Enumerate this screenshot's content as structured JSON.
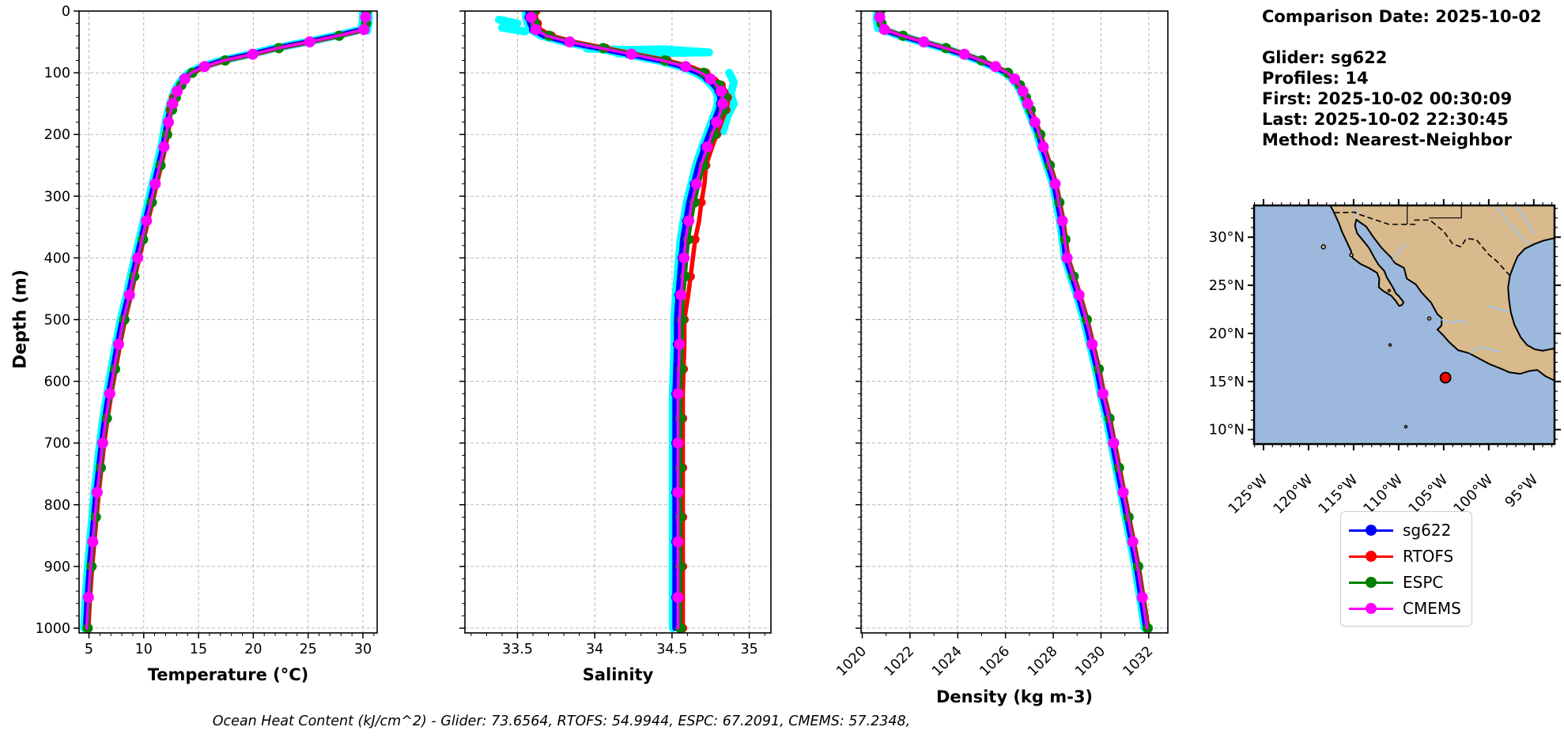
{
  "header": {
    "comparison_date": "Comparison Date: 2025-10-02",
    "glider": "Glider: sg622",
    "profiles": "Profiles: 14",
    "first": "First: 2025-10-02 00:30:09",
    "last": "Last: 2025-10-02 22:30:45",
    "method": "Method: Nearest-Neighbor"
  },
  "footer": {
    "ohc_line": "Ocean Heat Content (kJ/cm^2) - Glider: 73.6564,  RTOFS: 54.9944,  ESPC: 67.2091,  CMEMS: 57.2348,"
  },
  "legend": {
    "items": [
      {
        "label": "sg622",
        "color": "#0000ff"
      },
      {
        "label": "RTOFS",
        "color": "#ff0000"
      },
      {
        "label": "ESPC",
        "color": "#008000"
      },
      {
        "label": "CMEMS",
        "color": "#ff00ff"
      }
    ]
  },
  "colors": {
    "raw_glider": "#00ffff",
    "grid": "#b8b8b8",
    "land": "#d9ba8c",
    "ocean": "#9cb8dd",
    "river": "#a8c6e8",
    "point_fill": "#ff0000",
    "point_edge": "#000000"
  },
  "chart_data": {
    "type": "line",
    "description": "Glider sg622 vs model vertical profiles, depth 0-1000 m",
    "ylabel": "Depth (m)",
    "ylim": [
      0,
      1000
    ],
    "yticks": [
      0,
      100,
      200,
      300,
      400,
      500,
      600,
      700,
      800,
      900,
      1000
    ],
    "depths": [
      0,
      10,
      20,
      30,
      40,
      50,
      60,
      70,
      80,
      90,
      100,
      110,
      120,
      130,
      140,
      150,
      160,
      180,
      200,
      220,
      250,
      280,
      310,
      340,
      370,
      400,
      430,
      460,
      500,
      540,
      580,
      620,
      660,
      700,
      740,
      780,
      820,
      860,
      900,
      950,
      1000
    ],
    "charts": [
      {
        "id": "temperature",
        "xlabel": "Temperature (°C)",
        "xlim": [
          4.1,
          31.3
        ],
        "xticks": [
          5,
          10,
          15,
          20,
          25,
          30
        ],
        "minor_step": 1,
        "values_center": [
          30.3,
          30.3,
          30.25,
          30.15,
          27.8,
          25.2,
          22.3,
          20.0,
          17.4,
          15.6,
          14.4,
          13.8,
          13.4,
          13.1,
          12.9,
          12.7,
          12.55,
          12.3,
          12.1,
          11.9,
          11.5,
          11.1,
          10.7,
          10.3,
          9.9,
          9.5,
          9.1,
          8.75,
          8.2,
          7.75,
          7.35,
          6.95,
          6.6,
          6.3,
          6.05,
          5.8,
          5.6,
          5.4,
          5.2,
          5.0,
          4.85
        ],
        "series": [
          {
            "name": "glider-raw",
            "color": "#00ffff",
            "offset": -0.3,
            "lw": 10,
            "mr": 0
          },
          {
            "name": "sg622",
            "color": "#0000ff",
            "offset": -0.15,
            "lw": 7,
            "mr": 5,
            "mphase": 1
          },
          {
            "name": "RTOFS",
            "color": "#ff0000",
            "offset": 0.1,
            "lw": 5.5,
            "mr": 5.5,
            "mphase": 0,
            "deltas": {
              "140": -0.3,
              "150": -0.5,
              "160": -0.25
            }
          },
          {
            "name": "ESPC",
            "color": "#008000",
            "offset": 0.03,
            "lw": 4.5,
            "mr": 6.5,
            "mphase": 0
          },
          {
            "name": "CMEMS",
            "color": "#ff00ff",
            "offset": -0.05,
            "lw": 3.5,
            "mr": 7,
            "mphase": 1
          }
        ],
        "raw_extras": [
          [
            [
              30.5,
              2
            ],
            [
              30.55,
              12
            ],
            [
              30.5,
              22
            ],
            [
              30.4,
              32
            ]
          ]
        ]
      },
      {
        "id": "salinity",
        "xlabel": "Salinity",
        "xlim": [
          33.16,
          35.14
        ],
        "xticks": [
          33.5,
          34.0,
          34.5,
          35.0
        ],
        "minor_step": 0.1,
        "values_center": [
          33.6,
          33.6,
          33.61,
          33.63,
          33.7,
          33.85,
          34.05,
          34.25,
          34.45,
          34.6,
          34.7,
          34.76,
          34.8,
          34.83,
          34.84,
          34.84,
          34.83,
          34.8,
          34.77,
          34.74,
          34.7,
          34.67,
          34.64,
          34.62,
          34.6,
          34.59,
          34.58,
          34.57,
          34.56,
          34.56,
          34.555,
          34.55,
          34.55,
          34.55,
          34.55,
          34.55,
          34.55,
          34.55,
          34.55,
          34.55,
          34.55
        ],
        "series": [
          {
            "name": "glider-raw",
            "color": "#00ffff",
            "offset": -0.045,
            "lw": 10,
            "mr": 0
          },
          {
            "name": "sg622",
            "color": "#0000ff",
            "offset": -0.03,
            "lw": 7,
            "mr": 5,
            "mphase": 1
          },
          {
            "name": "RTOFS",
            "color": "#ff0000",
            "offset": 0.02,
            "lw": 5.5,
            "mr": 5.5,
            "mphase": 0,
            "deltas": {
              "280": 0.02,
              "310": 0.03,
              "340": 0.035,
              "370": 0.03,
              "400": 0.025,
              "430": 0.02,
              "460": 0.015
            }
          },
          {
            "name": "ESPC",
            "color": "#008000",
            "offset": 0.005,
            "lw": 4.5,
            "mr": 6.5,
            "mphase": 0
          },
          {
            "name": "CMEMS",
            "color": "#ff00ff",
            "offset": -0.012,
            "lw": 3.5,
            "mr": 7,
            "mphase": 1
          }
        ],
        "raw_extras": [
          [
            [
              33.38,
              14
            ],
            [
              33.5,
              20
            ],
            [
              33.4,
              27
            ],
            [
              33.55,
              33
            ]
          ],
          [
            [
              33.95,
              61
            ],
            [
              34.2,
              63
            ],
            [
              34.45,
              62
            ],
            [
              34.62,
              65
            ],
            [
              34.74,
              67
            ],
            [
              34.45,
              68
            ],
            [
              34.15,
              69
            ]
          ],
          [
            [
              34.87,
              100
            ],
            [
              34.9,
              115
            ],
            [
              34.88,
              135
            ],
            [
              34.9,
              150
            ],
            [
              34.86,
              170
            ],
            [
              34.83,
              195
            ]
          ]
        ]
      },
      {
        "id": "density",
        "xlabel": "Density (kg m-3)",
        "xlim": [
          1019.95,
          1032.8
        ],
        "xticks": [
          1020,
          1022,
          1024,
          1026,
          1028,
          1030,
          1032
        ],
        "minor_step": 1,
        "rotate_xticklabels": -45,
        "values_center": [
          1020.75,
          1020.75,
          1020.8,
          1020.95,
          1021.7,
          1022.6,
          1023.5,
          1024.3,
          1025.0,
          1025.6,
          1026.1,
          1026.4,
          1026.6,
          1026.75,
          1026.85,
          1026.95,
          1027.05,
          1027.25,
          1027.45,
          1027.6,
          1027.85,
          1028.1,
          1028.25,
          1028.4,
          1028.5,
          1028.6,
          1028.85,
          1029.1,
          1029.4,
          1029.65,
          1029.9,
          1030.1,
          1030.35,
          1030.55,
          1030.75,
          1030.95,
          1031.15,
          1031.35,
          1031.55,
          1031.75,
          1031.95
        ],
        "series": [
          {
            "name": "glider-raw",
            "color": "#00ffff",
            "offset": -0.12,
            "lw": 10,
            "mr": 0
          },
          {
            "name": "sg622",
            "color": "#0000ff",
            "offset": -0.07,
            "lw": 7,
            "mr": 5,
            "mphase": 1
          },
          {
            "name": "RTOFS",
            "color": "#ff0000",
            "offset": 0.03,
            "lw": 5.5,
            "mr": 5.5,
            "mphase": 0
          },
          {
            "name": "ESPC",
            "color": "#008000",
            "offset": 0.005,
            "lw": 4.5,
            "mr": 6.5,
            "mphase": 0
          },
          {
            "name": "CMEMS",
            "color": "#ff00ff",
            "offset": -0.02,
            "lw": 3.5,
            "mr": 7,
            "mphase": 1
          }
        ],
        "raw_extras": [
          [
            [
              1020.62,
              2
            ],
            [
              1020.6,
              15
            ],
            [
              1020.66,
              28
            ]
          ]
        ]
      }
    ]
  },
  "map": {
    "extent": {
      "lon_min": -126.05,
      "lon_max": -92.7,
      "lat_min": 8.5,
      "lat_max": 33.3
    },
    "lat_ticks": [
      {
        "v": 30,
        "label": "30°N"
      },
      {
        "v": 25,
        "label": "25°N"
      },
      {
        "v": 20,
        "label": "20°N"
      },
      {
        "v": 15,
        "label": "15°N"
      },
      {
        "v": 10,
        "label": "10°N"
      }
    ],
    "lon_ticks": [
      {
        "v": -125,
        "label": "125°W"
      },
      {
        "v": -120,
        "label": "120°W"
      },
      {
        "v": -115,
        "label": "115°W"
      },
      {
        "v": -110,
        "label": "110°W"
      },
      {
        "v": -105,
        "label": "105°W"
      },
      {
        "v": -100,
        "label": "100°W"
      },
      {
        "v": -95,
        "label": "95°W"
      }
    ],
    "point": {
      "lon": -104.8,
      "lat": 15.4
    },
    "land": [
      [
        [
          -117.6,
          33.3
        ],
        [
          -92.7,
          33.3
        ],
        [
          -92.7,
          29.9
        ],
        [
          -93.9,
          29.65
        ],
        [
          -94.9,
          29.3
        ],
        [
          -96.0,
          28.8
        ],
        [
          -96.8,
          28.0
        ],
        [
          -97.25,
          27.0
        ],
        [
          -97.65,
          26.0
        ],
        [
          -97.85,
          24.8
        ],
        [
          -97.75,
          23.5
        ],
        [
          -97.55,
          22.2
        ],
        [
          -97.15,
          20.9
        ],
        [
          -96.45,
          19.6
        ],
        [
          -95.75,
          18.8
        ],
        [
          -94.9,
          18.35
        ],
        [
          -94.0,
          18.2
        ],
        [
          -93.2,
          18.35
        ],
        [
          -92.7,
          18.45
        ],
        [
          -92.7,
          15.1
        ],
        [
          -93.7,
          15.55
        ],
        [
          -94.6,
          16.2
        ],
        [
          -95.5,
          16.1
        ],
        [
          -96.5,
          15.8
        ],
        [
          -97.7,
          15.95
        ],
        [
          -98.8,
          16.4
        ],
        [
          -99.9,
          16.8
        ],
        [
          -101.1,
          17.4
        ],
        [
          -102.2,
          17.95
        ],
        [
          -103.4,
          18.25
        ],
        [
          -104.4,
          19.1
        ],
        [
          -105.05,
          19.8
        ],
        [
          -105.7,
          20.4
        ],
        [
          -105.25,
          20.8
        ],
        [
          -105.2,
          21.6
        ],
        [
          -105.7,
          22.0
        ],
        [
          -106.4,
          23.2
        ],
        [
          -107.5,
          24.3
        ],
        [
          -108.1,
          25.1
        ],
        [
          -109.1,
          25.7
        ],
        [
          -109.4,
          26.8
        ],
        [
          -110.4,
          27.3
        ],
        [
          -110.9,
          27.95
        ],
        [
          -111.9,
          28.9
        ],
        [
          -112.8,
          30.0
        ],
        [
          -113.6,
          31.1
        ],
        [
          -114.45,
          31.65
        ],
        [
          -114.7,
          31.85
        ],
        [
          -114.85,
          31.2
        ],
        [
          -114.6,
          30.4
        ],
        [
          -113.9,
          29.6
        ],
        [
          -113.3,
          28.9
        ],
        [
          -112.6,
          27.7
        ],
        [
          -112.2,
          27.1
        ],
        [
          -111.6,
          26.5
        ],
        [
          -111.3,
          25.8
        ],
        [
          -110.65,
          24.8
        ],
        [
          -110.3,
          24.15
        ],
        [
          -110.0,
          23.9
        ],
        [
          -109.45,
          23.25
        ],
        [
          -109.65,
          22.95
        ],
        [
          -109.95,
          22.85
        ],
        [
          -110.3,
          23.35
        ],
        [
          -110.8,
          23.9
        ],
        [
          -111.7,
          24.4
        ],
        [
          -112.2,
          24.8
        ],
        [
          -112.15,
          25.7
        ],
        [
          -112.4,
          26.3
        ],
        [
          -113.3,
          26.8
        ],
        [
          -114.2,
          27.2
        ],
        [
          -115.1,
          27.85
        ],
        [
          -115.3,
          28.6
        ],
        [
          -115.8,
          29.6
        ],
        [
          -116.3,
          30.6
        ],
        [
          -116.65,
          31.5
        ],
        [
          -117.15,
          32.5
        ],
        [
          -117.3,
          32.8
        ],
        [
          -117.6,
          33.3
        ]
      ]
    ],
    "islets": [
      {
        "lon": -118.35,
        "lat": 29.0,
        "r": 2.5
      },
      {
        "lon": -115.25,
        "lat": 28.15,
        "r": 2
      },
      {
        "lon": -106.6,
        "lat": 21.55,
        "r": 2
      },
      {
        "lon": -110.95,
        "lat": 18.8,
        "r": 1.5
      },
      {
        "lon": -109.2,
        "lat": 10.3,
        "r": 1.5
      },
      {
        "lon": -111.05,
        "lat": 24.45,
        "r": 1.5
      }
    ],
    "borders": [
      [
        [
          -117.15,
          32.54
        ],
        [
          -114.8,
          32.6
        ],
        [
          -114.78,
          32.5
        ],
        [
          -111.07,
          31.33
        ],
        [
          -108.2,
          31.33
        ],
        [
          -108.2,
          31.78
        ],
        [
          -106.53,
          31.78
        ],
        [
          -105.0,
          30.6
        ],
        [
          -104.0,
          29.3
        ],
        [
          -103.1,
          29.0
        ],
        [
          -102.5,
          29.85
        ],
        [
          -101.4,
          29.77
        ],
        [
          -100.0,
          28.2
        ],
        [
          -99.1,
          27.5
        ],
        [
          -97.6,
          25.95
        ]
      ]
    ],
    "state_lines": [
      [
        [
          -109.05,
          33.3
        ],
        [
          -109.05,
          31.33
        ]
      ],
      [
        [
          -106.62,
          32.0
        ],
        [
          -103.04,
          32.0
        ],
        [
          -103.04,
          33.3
        ]
      ]
    ],
    "rivers": [
      [
        [
          -114.45,
          33.3
        ],
        [
          -114.6,
          32.7
        ],
        [
          -114.82,
          32.4
        ],
        [
          -114.7,
          31.9
        ]
      ],
      [
        [
          -99.2,
          33.3
        ],
        [
          -97.8,
          31.5
        ],
        [
          -96.2,
          29.8
        ],
        [
          -95.45,
          29.25
        ]
      ],
      [
        [
          -97.0,
          33.3
        ],
        [
          -95.9,
          31.9
        ],
        [
          -94.9,
          30.3
        ]
      ],
      [
        [
          -105.25,
          21.45
        ],
        [
          -104.2,
          21.1
        ],
        [
          -103.3,
          21.3
        ],
        [
          -102.4,
          21.1
        ]
      ],
      [
        [
          -102.1,
          17.95
        ],
        [
          -101.0,
          18.6
        ],
        [
          -99.7,
          18.3
        ],
        [
          -98.7,
          18.1
        ]
      ],
      [
        [
          -110.6,
          27.6
        ],
        [
          -109.9,
          28.6
        ],
        [
          -109.3,
          29.3
        ]
      ],
      [
        [
          -97.8,
          22.25
        ],
        [
          -98.9,
          22.5
        ],
        [
          -100.1,
          22.9
        ]
      ]
    ]
  }
}
